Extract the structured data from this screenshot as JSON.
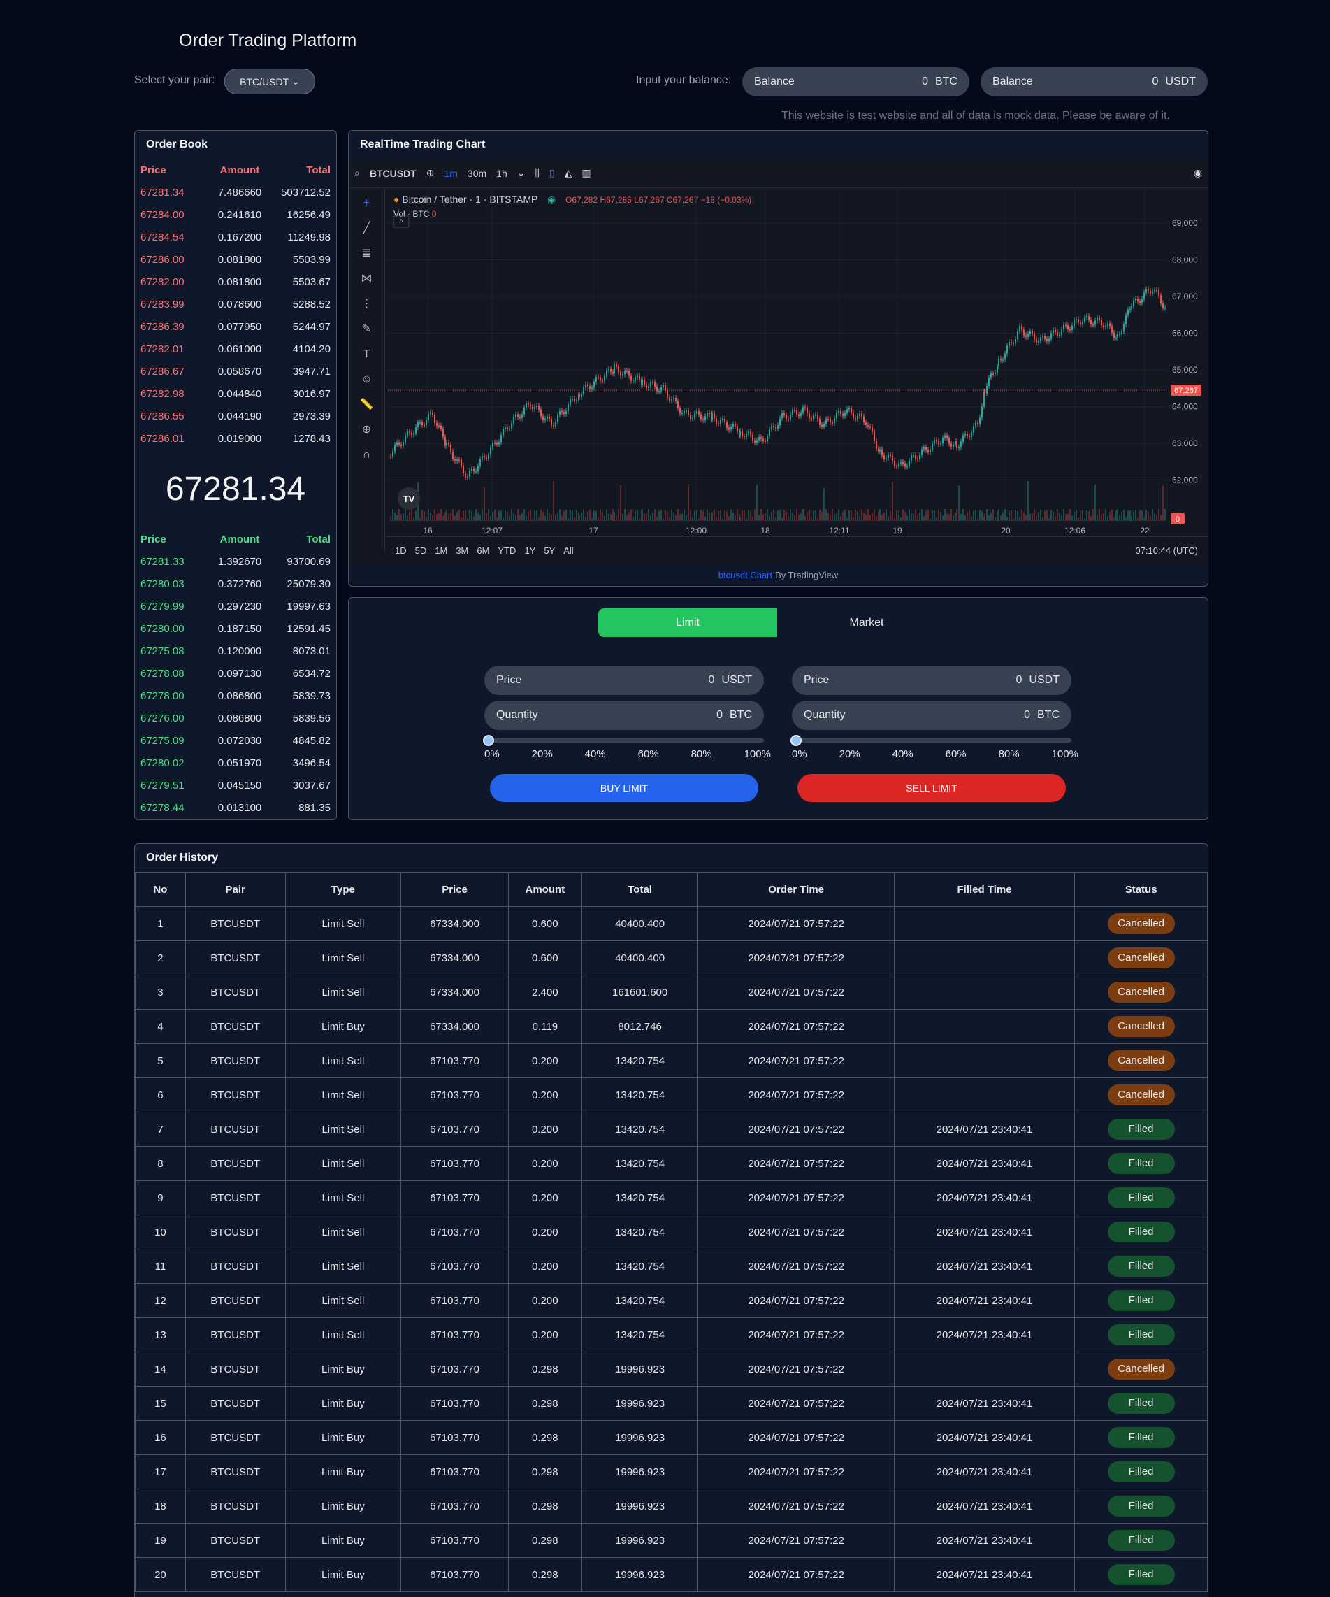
{
  "app_title": "Order Trading Platform",
  "pair_label": "Select your pair:",
  "pair_value": "BTC/USDT",
  "balance_label": "Input your balance:",
  "balances": [
    {
      "label": "Balance",
      "value": "0",
      "unit": "BTC"
    },
    {
      "label": "Balance",
      "value": "0",
      "unit": "USDT"
    }
  ],
  "notice": "This website is test website and all of data is mock data. Please be aware of it.",
  "order_book": {
    "title": "Order Book",
    "headers": [
      "Price",
      "Amount",
      "Total"
    ],
    "asks": [
      [
        "67281.34",
        "7.486660",
        "503712.52"
      ],
      [
        "67284.00",
        "0.241610",
        "16256.49"
      ],
      [
        "67284.54",
        "0.167200",
        "11249.98"
      ],
      [
        "67286.00",
        "0.081800",
        "5503.99"
      ],
      [
        "67282.00",
        "0.081800",
        "5503.67"
      ],
      [
        "67283.99",
        "0.078600",
        "5288.52"
      ],
      [
        "67286.39",
        "0.077950",
        "5244.97"
      ],
      [
        "67282.01",
        "0.061000",
        "4104.20"
      ],
      [
        "67286.67",
        "0.058670",
        "3947.71"
      ],
      [
        "67282.98",
        "0.044840",
        "3016.97"
      ],
      [
        "67286.55",
        "0.044190",
        "2973.39"
      ],
      [
        "67286.01",
        "0.019000",
        "1278.43"
      ]
    ],
    "mid_price": "67281.34",
    "bids": [
      [
        "67281.33",
        "1.392670",
        "93700.69"
      ],
      [
        "67280.03",
        "0.372760",
        "25079.30"
      ],
      [
        "67279.99",
        "0.297230",
        "19997.63"
      ],
      [
        "67280.00",
        "0.187150",
        "12591.45"
      ],
      [
        "67275.08",
        "0.120000",
        "8073.01"
      ],
      [
        "67278.08",
        "0.097130",
        "6534.72"
      ],
      [
        "67278.00",
        "0.086800",
        "5839.73"
      ],
      [
        "67276.00",
        "0.086800",
        "5839.56"
      ],
      [
        "67275.09",
        "0.072030",
        "4845.82"
      ],
      [
        "67280.02",
        "0.051970",
        "3496.54"
      ],
      [
        "67279.51",
        "0.045150",
        "3037.67"
      ],
      [
        "67278.44",
        "0.013100",
        "881.35"
      ]
    ]
  },
  "chart": {
    "title": "RealTime Trading Chart",
    "symbol": "BTCUSDT",
    "intervals": [
      "1m",
      "30m",
      "1h"
    ],
    "legend": "Bitcoin / Tether · 1 · BITSTAMP",
    "ohlc": "O67,282 H67,285 L67,267 C67,267 −18 (−0.03%)",
    "vol_label": "Vol · BTC",
    "vol_value": "0",
    "price_ticks": [
      "69,000",
      "68,000",
      "67,000",
      "66,000",
      "65,000",
      "64,000",
      "63,000",
      "62,000"
    ],
    "last_price": "67,267",
    "last_vol": "0",
    "time_ticks": [
      "16",
      "12:07",
      "17",
      "12:00",
      "18",
      "12:11",
      "19",
      "20",
      "12:06",
      "22"
    ],
    "ranges": [
      "1D",
      "5D",
      "1M",
      "3M",
      "6M",
      "YTD",
      "1Y",
      "5Y",
      "All"
    ],
    "clock": "07:10:44 (UTC)",
    "credit_link": "btcusdt Chart",
    "credit_text": "By TradingView",
    "logo": "TV"
  },
  "trade": {
    "tabs": [
      "Limit",
      "Market"
    ],
    "buy": {
      "price_label": "Price",
      "price_value": "0",
      "price_unit": "USDT",
      "qty_label": "Quantity",
      "qty_value": "0",
      "qty_unit": "BTC",
      "button": "BUY LIMIT",
      "slider_fraction": 0
    },
    "sell": {
      "price_label": "Price",
      "price_value": "0",
      "price_unit": "USDT",
      "qty_label": "Quantity",
      "qty_value": "0",
      "qty_unit": "BTC",
      "button": "SELL LIMIT",
      "slider_fraction": 0
    },
    "ticks": [
      "0%",
      "20%",
      "40%",
      "60%",
      "80%",
      "100%"
    ]
  },
  "history": {
    "title": "Order History",
    "headers": [
      "No",
      "Pair",
      "Type",
      "Price",
      "Amount",
      "Total",
      "Order Time",
      "Filled Time",
      "Status"
    ],
    "rows": [
      [
        "1",
        "BTCUSDT",
        "Limit Sell",
        "67334.000",
        "0.600",
        "40400.400",
        "2024/07/21 07:57:22",
        "",
        "Cancelled"
      ],
      [
        "2",
        "BTCUSDT",
        "Limit Sell",
        "67334.000",
        "0.600",
        "40400.400",
        "2024/07/21 07:57:22",
        "",
        "Cancelled"
      ],
      [
        "3",
        "BTCUSDT",
        "Limit Sell",
        "67334.000",
        "2.400",
        "161601.600",
        "2024/07/21 07:57:22",
        "",
        "Cancelled"
      ],
      [
        "4",
        "BTCUSDT",
        "Limit Buy",
        "67334.000",
        "0.119",
        "8012.746",
        "2024/07/21 07:57:22",
        "",
        "Cancelled"
      ],
      [
        "5",
        "BTCUSDT",
        "Limit Sell",
        "67103.770",
        "0.200",
        "13420.754",
        "2024/07/21 07:57:22",
        "",
        "Cancelled"
      ],
      [
        "6",
        "BTCUSDT",
        "Limit Sell",
        "67103.770",
        "0.200",
        "13420.754",
        "2024/07/21 07:57:22",
        "",
        "Cancelled"
      ],
      [
        "7",
        "BTCUSDT",
        "Limit Sell",
        "67103.770",
        "0.200",
        "13420.754",
        "2024/07/21 07:57:22",
        "2024/07/21 23:40:41",
        "Filled"
      ],
      [
        "8",
        "BTCUSDT",
        "Limit Sell",
        "67103.770",
        "0.200",
        "13420.754",
        "2024/07/21 07:57:22",
        "2024/07/21 23:40:41",
        "Filled"
      ],
      [
        "9",
        "BTCUSDT",
        "Limit Sell",
        "67103.770",
        "0.200",
        "13420.754",
        "2024/07/21 07:57:22",
        "2024/07/21 23:40:41",
        "Filled"
      ],
      [
        "10",
        "BTCUSDT",
        "Limit Sell",
        "67103.770",
        "0.200",
        "13420.754",
        "2024/07/21 07:57:22",
        "2024/07/21 23:40:41",
        "Filled"
      ],
      [
        "11",
        "BTCUSDT",
        "Limit Sell",
        "67103.770",
        "0.200",
        "13420.754",
        "2024/07/21 07:57:22",
        "2024/07/21 23:40:41",
        "Filled"
      ],
      [
        "12",
        "BTCUSDT",
        "Limit Sell",
        "67103.770",
        "0.200",
        "13420.754",
        "2024/07/21 07:57:22",
        "2024/07/21 23:40:41",
        "Filled"
      ],
      [
        "13",
        "BTCUSDT",
        "Limit Sell",
        "67103.770",
        "0.200",
        "13420.754",
        "2024/07/21 07:57:22",
        "2024/07/21 23:40:41",
        "Filled"
      ],
      [
        "14",
        "BTCUSDT",
        "Limit Buy",
        "67103.770",
        "0.298",
        "19996.923",
        "2024/07/21 07:57:22",
        "",
        "Cancelled"
      ],
      [
        "15",
        "BTCUSDT",
        "Limit Buy",
        "67103.770",
        "0.298",
        "19996.923",
        "2024/07/21 07:57:22",
        "2024/07/21 23:40:41",
        "Filled"
      ],
      [
        "16",
        "BTCUSDT",
        "Limit Buy",
        "67103.770",
        "0.298",
        "19996.923",
        "2024/07/21 07:57:22",
        "2024/07/21 23:40:41",
        "Filled"
      ],
      [
        "17",
        "BTCUSDT",
        "Limit Buy",
        "67103.770",
        "0.298",
        "19996.923",
        "2024/07/21 07:57:22",
        "2024/07/21 23:40:41",
        "Filled"
      ],
      [
        "18",
        "BTCUSDT",
        "Limit Buy",
        "67103.770",
        "0.298",
        "19996.923",
        "2024/07/21 07:57:22",
        "2024/07/21 23:40:41",
        "Filled"
      ],
      [
        "19",
        "BTCUSDT",
        "Limit Buy",
        "67103.770",
        "0.298",
        "19996.923",
        "2024/07/21 07:57:22",
        "2024/07/21 23:40:41",
        "Filled"
      ],
      [
        "20",
        "BTCUSDT",
        "Limit Buy",
        "67103.770",
        "0.298",
        "19996.923",
        "2024/07/21 07:57:22",
        "2024/07/21 23:40:41",
        "Filled"
      ]
    ]
  },
  "colors": {
    "buy": "#22c55e",
    "sell": "#ef4444",
    "accent": "#2563eb",
    "cancelled": "#7c3e10",
    "filled": "#14532d"
  }
}
